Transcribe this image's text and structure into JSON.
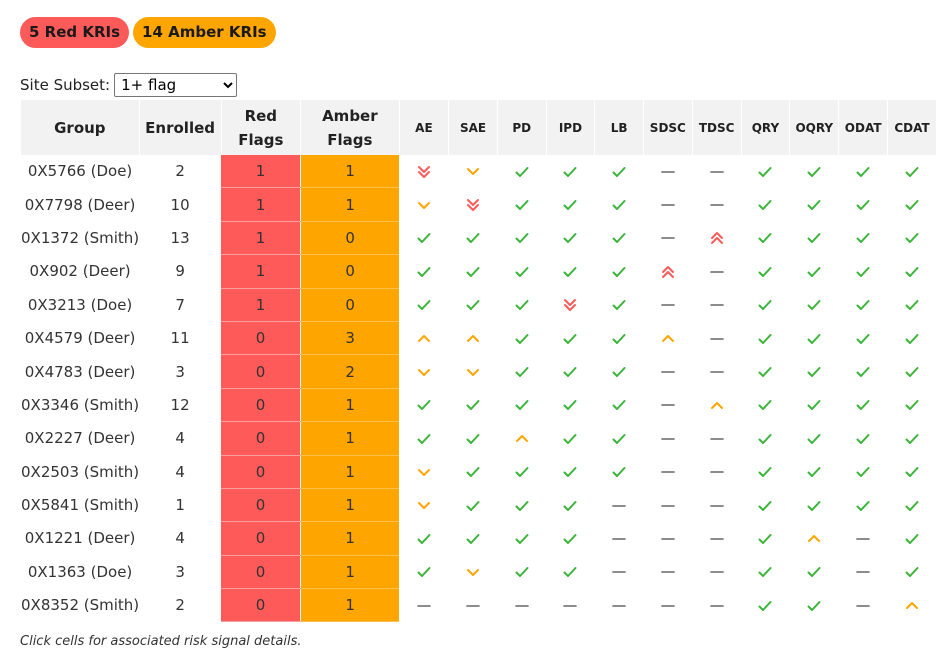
{
  "badges": {
    "red": "5 Red KRIs",
    "amber": "14 Amber KRIs"
  },
  "subset": {
    "label": "Site Subset:",
    "selected": "1+ flag"
  },
  "columns": {
    "group": "Group",
    "enrolled": "Enrolled",
    "red_flags": "Red Flags",
    "amber_flags": "Amber Flags"
  },
  "kri_columns": [
    "AE",
    "SAE",
    "PD",
    "IPD",
    "LB",
    "SDSC",
    "TDSC",
    "QRY",
    "OQRY",
    "ODAT",
    "CDAT"
  ],
  "status_legend": {
    "ok": "check-icon",
    "none": "dash-icon",
    "amber_up": "amber-chevron-up-icon",
    "amber_down": "amber-chevron-down-icon",
    "red_up": "red-double-chevron-up-icon",
    "red_down": "red-double-chevron-down-icon"
  },
  "colors": {
    "red": "#ff5a5a",
    "amber": "#ffa500",
    "green": "#3ab53a",
    "gray": "#666666"
  },
  "rows": [
    {
      "group": "0X5766 (Doe)",
      "enrolled": "2",
      "red": "1",
      "amber": "1",
      "kri": [
        "red_down",
        "amber_down",
        "ok",
        "ok",
        "ok",
        "none",
        "none",
        "ok",
        "ok",
        "ok",
        "ok"
      ]
    },
    {
      "group": "0X7798 (Deer)",
      "enrolled": "10",
      "red": "1",
      "amber": "1",
      "kri": [
        "amber_down",
        "red_down",
        "ok",
        "ok",
        "ok",
        "none",
        "none",
        "ok",
        "ok",
        "ok",
        "ok"
      ]
    },
    {
      "group": "0X1372 (Smith)",
      "enrolled": "13",
      "red": "1",
      "amber": "0",
      "kri": [
        "ok",
        "ok",
        "ok",
        "ok",
        "ok",
        "none",
        "red_up",
        "ok",
        "ok",
        "ok",
        "ok"
      ]
    },
    {
      "group": "0X902 (Deer)",
      "enrolled": "9",
      "red": "1",
      "amber": "0",
      "kri": [
        "ok",
        "ok",
        "ok",
        "ok",
        "ok",
        "red_up",
        "none",
        "ok",
        "ok",
        "ok",
        "ok"
      ]
    },
    {
      "group": "0X3213 (Doe)",
      "enrolled": "7",
      "red": "1",
      "amber": "0",
      "kri": [
        "ok",
        "ok",
        "ok",
        "red_down",
        "ok",
        "none",
        "none",
        "ok",
        "ok",
        "ok",
        "ok"
      ]
    },
    {
      "group": "0X4579 (Deer)",
      "enrolled": "11",
      "red": "0",
      "amber": "3",
      "kri": [
        "amber_up",
        "amber_up",
        "ok",
        "ok",
        "ok",
        "amber_up",
        "none",
        "ok",
        "ok",
        "ok",
        "ok"
      ]
    },
    {
      "group": "0X4783 (Deer)",
      "enrolled": "3",
      "red": "0",
      "amber": "2",
      "kri": [
        "amber_down",
        "amber_down",
        "ok",
        "ok",
        "ok",
        "none",
        "none",
        "ok",
        "ok",
        "ok",
        "ok"
      ]
    },
    {
      "group": "0X3346 (Smith)",
      "enrolled": "12",
      "red": "0",
      "amber": "1",
      "kri": [
        "ok",
        "ok",
        "ok",
        "ok",
        "ok",
        "none",
        "amber_up",
        "ok",
        "ok",
        "ok",
        "ok"
      ]
    },
    {
      "group": "0X2227 (Deer)",
      "enrolled": "4",
      "red": "0",
      "amber": "1",
      "kri": [
        "ok",
        "ok",
        "amber_up",
        "ok",
        "ok",
        "none",
        "none",
        "ok",
        "ok",
        "ok",
        "ok"
      ]
    },
    {
      "group": "0X2503 (Smith)",
      "enrolled": "4",
      "red": "0",
      "amber": "1",
      "kri": [
        "amber_down",
        "ok",
        "ok",
        "ok",
        "ok",
        "none",
        "none",
        "ok",
        "ok",
        "ok",
        "ok"
      ]
    },
    {
      "group": "0X5841 (Smith)",
      "enrolled": "1",
      "red": "0",
      "amber": "1",
      "kri": [
        "amber_down",
        "ok",
        "ok",
        "ok",
        "none",
        "none",
        "none",
        "ok",
        "ok",
        "ok",
        "ok"
      ]
    },
    {
      "group": "0X1221 (Deer)",
      "enrolled": "4",
      "red": "0",
      "amber": "1",
      "kri": [
        "ok",
        "ok",
        "ok",
        "ok",
        "none",
        "none",
        "none",
        "ok",
        "amber_up",
        "none",
        "ok"
      ]
    },
    {
      "group": "0X1363 (Doe)",
      "enrolled": "3",
      "red": "0",
      "amber": "1",
      "kri": [
        "ok",
        "amber_down",
        "ok",
        "ok",
        "none",
        "none",
        "none",
        "ok",
        "ok",
        "none",
        "ok"
      ]
    },
    {
      "group": "0X8352 (Smith)",
      "enrolled": "2",
      "red": "0",
      "amber": "1",
      "kri": [
        "none",
        "none",
        "none",
        "none",
        "none",
        "none",
        "none",
        "ok",
        "ok",
        "none",
        "amber_up"
      ]
    }
  ],
  "footnote": "Click cells for associated risk signal details."
}
